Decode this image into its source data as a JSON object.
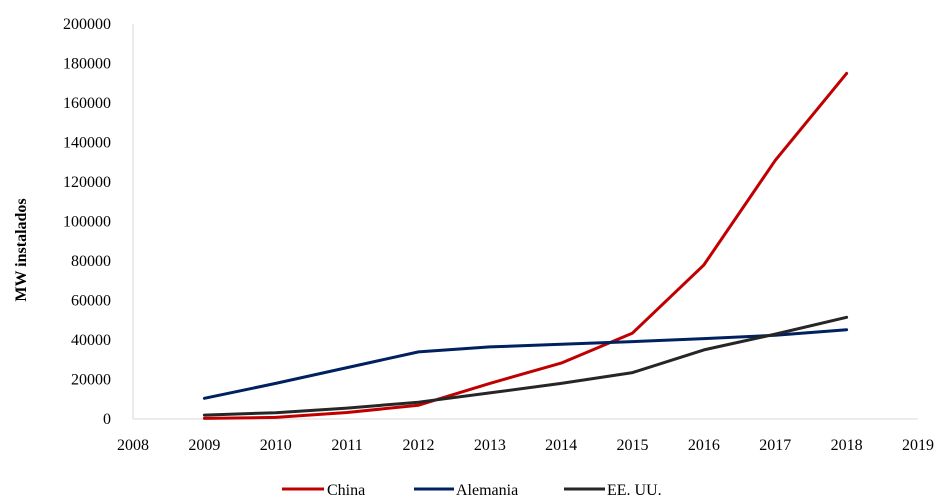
{
  "chart_data": {
    "type": "line",
    "title": "",
    "xlabel": "",
    "ylabel": "MW instalados",
    "xlim": [
      2008,
      2019
    ],
    "ylim": [
      0,
      200000
    ],
    "x_ticks": [
      "2008",
      "2009",
      "2010",
      "2011",
      "2012",
      "2013",
      "2014",
      "2015",
      "2016",
      "2017",
      "2018",
      "2019"
    ],
    "y_ticks": [
      "0",
      "20000",
      "40000",
      "60000",
      "80000",
      "100000",
      "120000",
      "140000",
      "160000",
      "180000",
      "200000"
    ],
    "grid": false,
    "legend_position": "bottom",
    "x": [
      2009,
      2010,
      2011,
      2012,
      2013,
      2014,
      2015,
      2016,
      2017,
      2018
    ],
    "series": [
      {
        "name": "China",
        "color": "#C00000",
        "values": [
          300,
          800,
          3300,
          7000,
          18000,
          28300,
          43500,
          78000,
          131000,
          175000
        ]
      },
      {
        "name": "Alemania",
        "color": "#002060",
        "values": [
          10500,
          18000,
          26000,
          34000,
          36500,
          37800,
          39200,
          40700,
          42400,
          45200
        ]
      },
      {
        "name": "EE. UU.",
        "color": "#262626",
        "values": [
          2000,
          3200,
          5500,
          8500,
          13200,
          18000,
          23500,
          35000,
          43000,
          51500
        ]
      }
    ]
  }
}
